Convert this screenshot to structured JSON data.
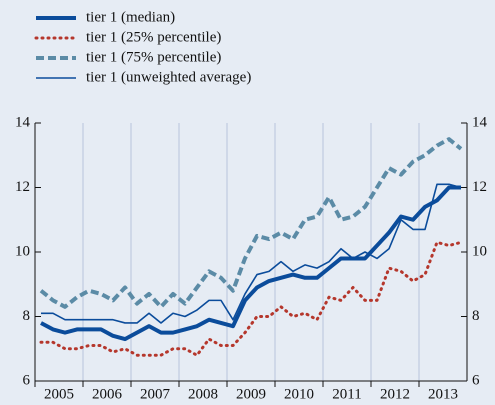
{
  "chart_data": {
    "type": "line",
    "x": [
      2005.125,
      2005.375,
      2005.625,
      2005.875,
      2006.125,
      2006.375,
      2006.625,
      2006.875,
      2007.125,
      2007.375,
      2007.625,
      2007.875,
      2008.125,
      2008.375,
      2008.625,
      2008.875,
      2009.125,
      2009.375,
      2009.625,
      2009.875,
      2010.125,
      2010.375,
      2010.625,
      2010.875,
      2011.125,
      2011.375,
      2011.625,
      2011.875,
      2012.125,
      2012.375,
      2012.625,
      2012.875,
      2013.125,
      2013.375,
      2013.625,
      2013.875
    ],
    "series": [
      {
        "name": "tier 1 (median)",
        "color": "#0b4c9b",
        "style": "thick",
        "values": [
          7.8,
          7.6,
          7.5,
          7.6,
          7.6,
          7.6,
          7.4,
          7.3,
          7.5,
          7.7,
          7.5,
          7.5,
          7.6,
          7.7,
          7.9,
          7.8,
          7.7,
          8.5,
          8.9,
          9.1,
          9.2,
          9.3,
          9.2,
          9.2,
          9.5,
          9.8,
          9.8,
          9.8,
          10.2,
          10.6,
          11.1,
          11.0,
          11.4,
          11.6,
          12.0,
          12.0
        ]
      },
      {
        "name": "tier 1 (25% percentile)",
        "color": "#b5372c",
        "style": "dotted",
        "values": [
          7.2,
          7.2,
          7.0,
          7.0,
          7.1,
          7.1,
          6.9,
          7.0,
          6.8,
          6.8,
          6.8,
          7.0,
          7.0,
          6.8,
          7.3,
          7.1,
          7.1,
          7.5,
          8.0,
          8.0,
          8.3,
          8.0,
          8.1,
          7.9,
          8.6,
          8.5,
          8.9,
          8.5,
          8.5,
          9.5,
          9.4,
          9.1,
          9.3,
          10.3,
          10.2,
          10.3
        ]
      },
      {
        "name": "tier 1 (75% percentile)",
        "color": "#5b8ba6",
        "style": "dashed",
        "values": [
          8.8,
          8.5,
          8.3,
          8.6,
          8.8,
          8.7,
          8.5,
          8.9,
          8.4,
          8.7,
          8.3,
          8.7,
          8.4,
          8.9,
          9.4,
          9.2,
          8.8,
          9.8,
          10.5,
          10.4,
          10.6,
          10.4,
          11.0,
          11.1,
          11.7,
          11.0,
          11.1,
          11.4,
          12.0,
          12.6,
          12.4,
          12.8,
          13.0,
          13.3,
          13.5,
          13.2
        ]
      },
      {
        "name": "tier 1 (unweighted average)",
        "color": "#0b4c9b",
        "style": "thin",
        "values": [
          8.1,
          8.1,
          7.9,
          7.9,
          7.9,
          7.9,
          7.9,
          7.8,
          7.8,
          8.1,
          7.8,
          8.1,
          8.0,
          8.2,
          8.5,
          8.5,
          7.9,
          8.7,
          9.3,
          9.4,
          9.7,
          9.4,
          9.6,
          9.5,
          9.7,
          10.1,
          9.8,
          10.0,
          9.8,
          10.1,
          11.0,
          10.7,
          10.7,
          12.1,
          12.1,
          12.0
        ]
      }
    ],
    "xlim": [
      2005,
      2014
    ],
    "xticks": [
      2005,
      2006,
      2007,
      2008,
      2009,
      2010,
      2011,
      2012,
      2013
    ],
    "ylim": [
      6,
      14
    ],
    "yticks": [
      6,
      8,
      10,
      12,
      14
    ],
    "y2lim": [
      6,
      14
    ],
    "y2ticks": [
      6,
      8,
      10,
      12,
      14
    ],
    "grid": true,
    "legend": "top-left"
  }
}
